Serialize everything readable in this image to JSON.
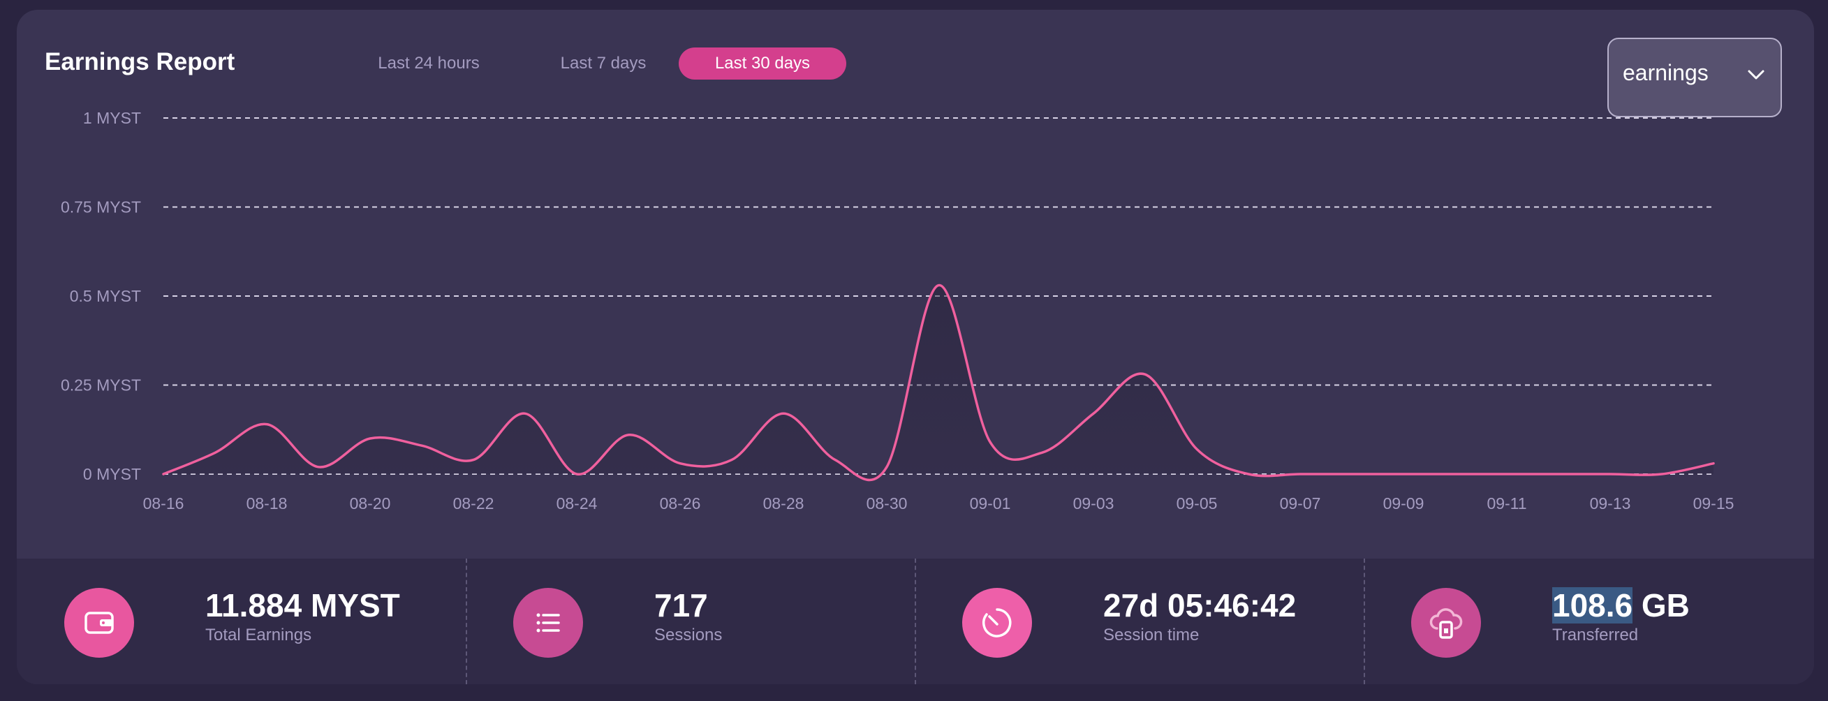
{
  "header": {
    "title": "Earnings Report",
    "tabs": [
      "Last 24 hours",
      "Last 7 days",
      "Last 30 days"
    ],
    "active_tab": "Last 30 days",
    "dropdown_value": "earnings"
  },
  "chart_data": {
    "type": "line",
    "title": "Earnings Report",
    "xlabel": "",
    "ylabel": "",
    "ylim": [
      0,
      1
    ],
    "y_ticks": [
      "0 MYST",
      "0.25 MYST",
      "0.5 MYST",
      "0.75 MYST",
      "1 MYST"
    ],
    "y_tick_values": [
      0,
      0.25,
      0.5,
      0.75,
      1
    ],
    "x_ticks": [
      "08-16",
      "08-18",
      "08-20",
      "08-22",
      "08-24",
      "08-26",
      "08-28",
      "08-30",
      "09-01",
      "09-03",
      "09-05",
      "09-07",
      "09-09",
      "09-11",
      "09-13",
      "09-15"
    ],
    "grid": true,
    "series": [
      {
        "name": "earnings",
        "color": "#f0609e",
        "x": [
          0,
          1,
          2,
          3,
          4,
          5,
          6,
          7,
          8,
          9,
          10,
          11,
          12,
          13,
          14,
          15,
          16,
          17,
          18,
          19,
          20,
          21,
          22,
          23,
          24,
          25,
          26,
          27,
          28,
          29,
          30
        ],
        "values": [
          0.0,
          0.06,
          0.14,
          0.02,
          0.1,
          0.08,
          0.04,
          0.17,
          0.0,
          0.11,
          0.03,
          0.04,
          0.17,
          0.04,
          0.02,
          0.53,
          0.09,
          0.06,
          0.17,
          0.28,
          0.07,
          0.0,
          0.0,
          0.0,
          0.0,
          0.0,
          0.0,
          0.0,
          0.0,
          0.0,
          0.03
        ]
      }
    ]
  },
  "stats": [
    {
      "value": "11.884 MYST",
      "label": "Total Earnings",
      "icon": "wallet-icon"
    },
    {
      "value": "717",
      "label": "Sessions",
      "icon": "list-icon"
    },
    {
      "value": "27d 05:46:42",
      "label": "Session time",
      "icon": "timer-icon"
    },
    {
      "value_highlight": "108.6",
      "value_rest": " GB",
      "label": "Transferred",
      "icon": "cloud-lock-icon"
    }
  ],
  "colors": {
    "accent": "#d43f8d",
    "line": "#f0609e",
    "card": "#3a3453",
    "stats_bg": "#302a47",
    "icon_bg": "#e15aa5"
  }
}
